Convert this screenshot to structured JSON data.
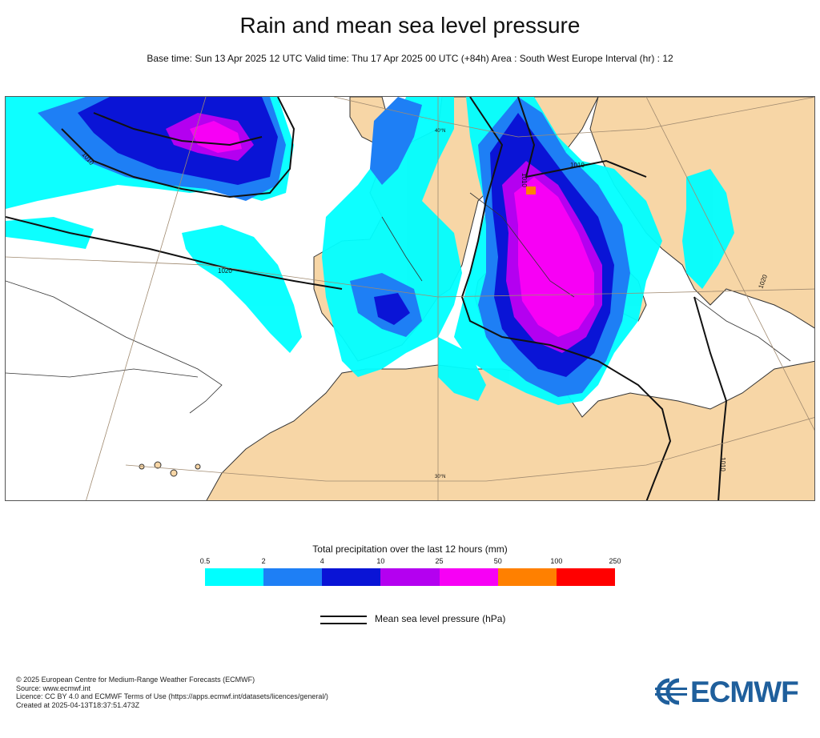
{
  "header": {
    "title": "Rain and mean sea level pressure",
    "subtitle": "Base time: Sun 13 Apr 2025 12 UTC Valid time: Thu 17 Apr 2025 00 UTC (+84h) Area : South West Europe Interval (hr) : 12"
  },
  "map": {
    "isobar_labels": [
      "1010",
      "1020",
      "1010",
      "1010",
      "1020",
      "1010"
    ],
    "latitude_labels": [
      "40°N",
      "30°N"
    ],
    "colors": {
      "land": "#f7d6a6",
      "sea": "#ffffff",
      "coast": "#333333"
    }
  },
  "legend": {
    "title": "Total precipitation over the last 12 hours (mm)",
    "ticks": [
      "0.5",
      "2",
      "4",
      "10",
      "25",
      "50",
      "100",
      "250"
    ],
    "colors": [
      "#00ffff",
      "#1e7ff5",
      "#0a14d6",
      "#b400f0",
      "#f700f5",
      "#ff8000",
      "#ff0000"
    ]
  },
  "pressure_legend": {
    "label": "Mean sea level pressure (hPa)"
  },
  "footer": {
    "lines": [
      "© 2025 European Centre for Medium-Range Weather Forecasts (ECMWF)",
      "Source: www.ecmwf.int",
      "Licence: CC BY 4.0 and ECMWF Terms of Use (https://apps.ecmwf.int/datasets/licences/general/)",
      "Created at 2025-04-13T18:37:51.473Z"
    ]
  },
  "logo": {
    "text": "ECMWF",
    "color": "#1f5f9c"
  }
}
